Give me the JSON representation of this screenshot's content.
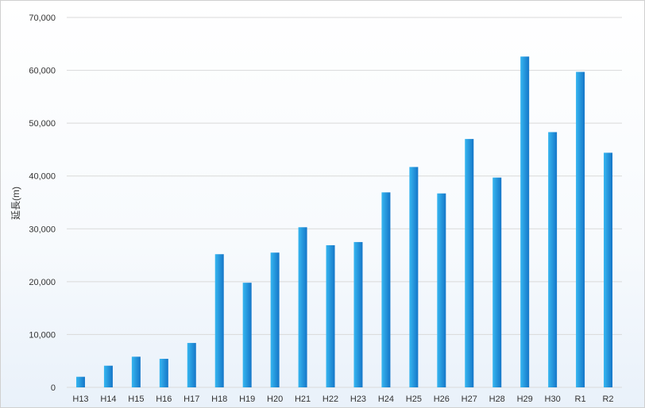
{
  "chart_data": {
    "type": "bar",
    "title": "",
    "xlabel": "",
    "ylabel": "延長(m)",
    "ylim": [
      0,
      70000
    ],
    "yticks": [
      0,
      10000,
      20000,
      30000,
      40000,
      50000,
      60000,
      70000
    ],
    "ytick_labels": [
      "0",
      "10,000",
      "20,000",
      "30,000",
      "40,000",
      "50,000",
      "60,000",
      "70,000"
    ],
    "grid": true,
    "legend": "none",
    "categories": [
      "H13",
      "H14",
      "H15",
      "H16",
      "H17",
      "H18",
      "H19",
      "H20",
      "H21",
      "H22",
      "H23",
      "H24",
      "H25",
      "H26",
      "H27",
      "H28",
      "H29",
      "H30",
      "R1",
      "R2"
    ],
    "values": [
      2000,
      4100,
      5800,
      5400,
      8400,
      25200,
      19800,
      25500,
      30300,
      26900,
      27500,
      36900,
      41700,
      36700,
      47000,
      39700,
      62600,
      48300,
      59700,
      44400
    ],
    "colors": {
      "bar_light": "#36b6f0",
      "bar_dark": "#1576c8",
      "grid": "#d9d9d9"
    }
  }
}
